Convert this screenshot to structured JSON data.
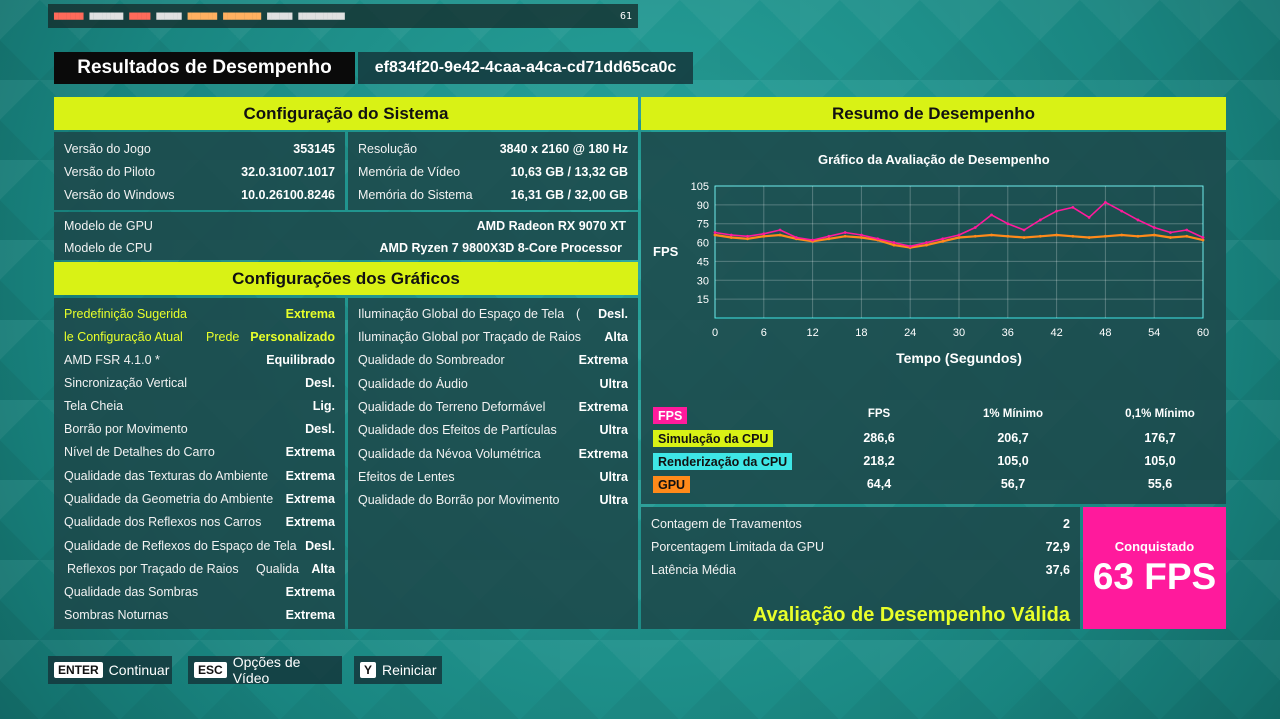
{
  "overlay": {
    "fps": "61"
  },
  "title": "Resultados de Desempenho",
  "run_id": "ef834f20-9e42-4caa-a4ca-cd71dd65ca0c",
  "system": {
    "header": "Configuração do Sistema",
    "left": [
      {
        "label": "Versão do Jogo",
        "value": "353145"
      },
      {
        "label": "Versão do Piloto",
        "value": "32.0.31007.1017"
      },
      {
        "label": "Versão do Windows",
        "value": "10.0.26100.8246"
      }
    ],
    "right": [
      {
        "label": "Resolução",
        "value": "3840 x 2160 @ 180 Hz"
      },
      {
        "label": "Memória de Vídeo",
        "value": "10,63 GB / 13,32 GB"
      },
      {
        "label": "Memória do Sistema",
        "value": "16,31 GB / 32,00 GB"
      }
    ],
    "hardware": [
      {
        "label": "Modelo de GPU",
        "value": "AMD Radeon RX 9070 XT"
      },
      {
        "label": "Modelo de CPU",
        "value": "AMD Ryzen 7 9800X3D 8-Core Processor"
      }
    ]
  },
  "graphics": {
    "header": "Configurações dos Gráficos",
    "left": [
      {
        "label": "Predefinição Sugerida",
        "value": "Extrema",
        "mid": ""
      },
      {
        "label": "le Configuração Atual",
        "value": "Personalizado",
        "mid": "Prede"
      },
      {
        "label": "AMD FSR 4.1.0 *",
        "value": "Equilibrado",
        "mid": ""
      },
      {
        "label": "Sincronização Vertical",
        "value": "Desl.",
        "mid": ""
      },
      {
        "label": "Tela Cheia",
        "value": "Lig.",
        "mid": ""
      },
      {
        "label": "Borrão por Movimento",
        "value": "Desl.",
        "mid": ""
      },
      {
        "label": "Nível de Detalhes do Carro",
        "value": "Extrema",
        "mid": ""
      },
      {
        "label": "Qualidade das Texturas do Ambiente",
        "value": "Extrema",
        "mid": ""
      },
      {
        "label": "Qualidade da Geometria do Ambiente",
        "value": "Extrema",
        "mid": ""
      },
      {
        "label": "Qualidade dos Reflexos nos Carros",
        "value": "Extrema",
        "mid": ""
      },
      {
        "label": "Qualidade de Reflexos do Espaço de Tela",
        "value": "Desl.",
        "mid": ""
      },
      {
        "label": "Reflexos por Traçado de Raios",
        "value": "Alta",
        "mid": "Qualida"
      },
      {
        "label": "Qualidade das Sombras",
        "value": "Extrema",
        "mid": ""
      },
      {
        "label": "Sombras Noturnas",
        "value": "Extrema",
        "mid": ""
      }
    ],
    "right": [
      {
        "label": "Iluminação Global do Espaço de Tela",
        "value": "Desl.",
        "mid": "("
      },
      {
        "label": "Iluminação Global por Traçado de Raios",
        "value": "Alta",
        "mid": ""
      },
      {
        "label": "Qualidade do Sombreador",
        "value": "Extrema",
        "mid": ""
      },
      {
        "label": "Qualidade do Áudio",
        "value": "Ultra",
        "mid": ""
      },
      {
        "label": "Qualidade do Terreno Deformável",
        "value": "Extrema",
        "mid": ""
      },
      {
        "label": "Qualidade dos Efeitos de Partículas",
        "value": "Ultra",
        "mid": ""
      },
      {
        "label": "Qualidade da Névoa Volumétrica",
        "value": "Extrema",
        "mid": ""
      },
      {
        "label": "Efeitos de Lentes",
        "value": "Ultra",
        "mid": ""
      },
      {
        "label": "Qualidade do Borrão por Movimento",
        "value": "Ultra",
        "mid": ""
      }
    ]
  },
  "summary": {
    "header": "Resumo de Desempenho",
    "chart_title": "Gráfico da Avaliação de Desempenho",
    "stat_headers": [
      "FPS",
      "1% Mínimo",
      "0,1% Mínimo"
    ],
    "stats": [
      {
        "name": "FPS",
        "color": "#ff1a9c",
        "values": [
          "",
          "",
          ""
        ]
      },
      {
        "name": "Simulação da CPU",
        "color": "#d9f215",
        "values": [
          "286,6",
          "206,7",
          "176,7"
        ]
      },
      {
        "name": "Renderização da CPU",
        "color": "#3ee6e6",
        "values": [
          "218,2",
          "105,0",
          "105,0"
        ]
      },
      {
        "name": "GPU",
        "color": "#ff8a1a",
        "values": [
          "64,4",
          "56,7",
          "55,6"
        ]
      }
    ],
    "metrics": [
      {
        "label": "Contagem de Travamentos",
        "value": "2"
      },
      {
        "label": "Porcentagem Limitada da GPU",
        "value": "72,9"
      },
      {
        "label": "Latência Média",
        "value": "37,6"
      }
    ],
    "achieved_label": "Conquistado",
    "achieved_value": "63 FPS",
    "valid_text": "Avaliação de Desempenho Válida"
  },
  "chart_data": {
    "type": "line",
    "title": "Gráfico da Avaliação de Desempenho",
    "xlabel": "Tempo (Segundos)",
    "ylabel": "FPS",
    "xlim": [
      0,
      60
    ],
    "ylim": [
      0,
      105
    ],
    "xticks": [
      0,
      6,
      12,
      18,
      24,
      30,
      36,
      42,
      48,
      54,
      60
    ],
    "yticks": [
      15,
      30,
      45,
      60,
      75,
      90,
      105
    ],
    "grid": true,
    "series": [
      {
        "name": "FPS",
        "color": "#ff1a9c",
        "x": [
          0,
          2,
          4,
          6,
          8,
          10,
          12,
          14,
          16,
          18,
          20,
          22,
          24,
          26,
          28,
          30,
          32,
          34,
          36,
          38,
          40,
          42,
          44,
          46,
          48,
          50,
          52,
          54,
          56,
          58,
          60
        ],
        "y": [
          68,
          66,
          65,
          67,
          70,
          64,
          62,
          65,
          68,
          66,
          63,
          60,
          57,
          60,
          63,
          66,
          72,
          82,
          75,
          70,
          78,
          85,
          88,
          80,
          92,
          85,
          78,
          72,
          68,
          70,
          64
        ]
      },
      {
        "name": "GPU",
        "color": "#ff8a1a",
        "x": [
          0,
          2,
          4,
          6,
          8,
          10,
          12,
          14,
          16,
          18,
          20,
          22,
          24,
          26,
          28,
          30,
          32,
          34,
          36,
          38,
          40,
          42,
          44,
          46,
          48,
          50,
          52,
          54,
          56,
          58,
          60
        ],
        "y": [
          66,
          64,
          63,
          65,
          66,
          63,
          61,
          63,
          65,
          64,
          62,
          58,
          56,
          58,
          61,
          64,
          65,
          66,
          65,
          64,
          65,
          66,
          65,
          64,
          65,
          66,
          65,
          66,
          64,
          65,
          62
        ]
      }
    ]
  }
}
